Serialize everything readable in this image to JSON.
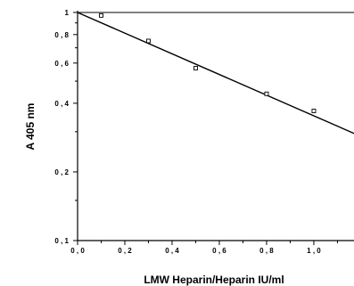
{
  "chart_data": {
    "type": "scatter",
    "title": "",
    "xlabel": "LMW Heparin/Heparin IU/ml",
    "ylabel": "A 405 nm",
    "xlim": [
      0.0,
      1.17
    ],
    "ylim": [
      0.1,
      1.0
    ],
    "y_scale": "log",
    "grid": false,
    "x_ticks": [
      0.0,
      0.2,
      0.4,
      0.6,
      0.8,
      1.0
    ],
    "x_tick_labels": [
      "0 , 0",
      "0 , 2",
      "0 , 4",
      "0 , 6",
      "0 , 8",
      "1 , 0"
    ],
    "y_ticks": [
      1.0,
      0.8,
      0.6,
      0.4,
      0.2,
      0.1
    ],
    "y_tick_labels": [
      "1",
      "0 , 8",
      "0 , 6",
      "0 , 4",
      "0 , 2",
      "0 , 1"
    ],
    "series": [
      {
        "marker": "open-square",
        "x": [
          0.1,
          0.3,
          0.5,
          0.8,
          1.0
        ],
        "y": [
          0.97,
          0.75,
          0.57,
          0.44,
          0.37
        ]
      }
    ],
    "fit_line": {
      "style": "solid",
      "x": [
        0.0,
        1.17
      ],
      "y": [
        1.0,
        0.295
      ]
    }
  }
}
